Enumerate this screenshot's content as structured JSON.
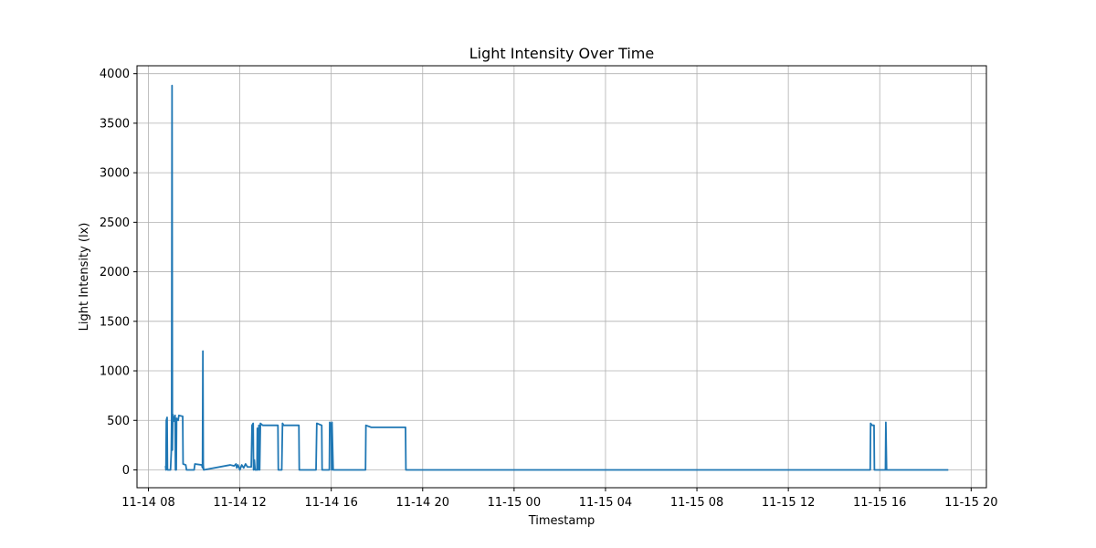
{
  "chart_data": {
    "type": "line",
    "title": "Light Intensity Over Time",
    "xlabel": "Timestamp",
    "ylabel": "Light Intensity (lx)",
    "x_ticks": [
      "11-14 08",
      "11-14 12",
      "11-14 16",
      "11-14 20",
      "11-15 00",
      "11-15 04",
      "11-15 08",
      "11-15 12",
      "11-15 16",
      "11-15 20"
    ],
    "y_ticks": [
      "0",
      "500",
      "1000",
      "1500",
      "2000",
      "2500",
      "3000",
      "3500",
      "4000"
    ],
    "xlim": [
      "2024-11-14T07:30",
      "2024-11-15T20:40"
    ],
    "ylim": [
      -180,
      4080
    ],
    "grid": true,
    "line_color": "#1f77b4",
    "series": [
      {
        "points": [
          [
            "2024-11-14T08:45",
            40
          ],
          [
            "2024-11-14T08:46",
            0
          ],
          [
            "2024-11-14T08:47",
            500
          ],
          [
            "2024-11-14T08:49",
            530
          ],
          [
            "2024-11-14T08:50",
            0
          ],
          [
            "2024-11-14T08:58",
            0
          ],
          [
            "2024-11-14T09:00",
            180
          ],
          [
            "2024-11-14T09:01",
            520
          ],
          [
            "2024-11-14T09:02",
            3880
          ],
          [
            "2024-11-14T09:03",
            200
          ],
          [
            "2024-11-14T09:04",
            560
          ],
          [
            "2024-11-14T09:06",
            520
          ],
          [
            "2024-11-14T09:08",
            490
          ],
          [
            "2024-11-14T09:10",
            550
          ],
          [
            "2024-11-14T09:11",
            0
          ],
          [
            "2024-11-14T09:13",
            0
          ],
          [
            "2024-11-14T09:14",
            520
          ],
          [
            "2024-11-14T09:18",
            500
          ],
          [
            "2024-11-14T09:20",
            550
          ],
          [
            "2024-11-14T09:30",
            540
          ],
          [
            "2024-11-14T09:31",
            60
          ],
          [
            "2024-11-14T09:38",
            50
          ],
          [
            "2024-11-14T09:40",
            0
          ],
          [
            "2024-11-14T10:00",
            0
          ],
          [
            "2024-11-14T10:02",
            60
          ],
          [
            "2024-11-14T10:20",
            50
          ],
          [
            "2024-11-14T10:22",
            20
          ],
          [
            "2024-11-14T10:23",
            1200
          ],
          [
            "2024-11-14T10:24",
            50
          ],
          [
            "2024-11-14T10:25",
            0
          ],
          [
            "2024-11-14T11:35",
            50
          ],
          [
            "2024-11-14T11:45",
            40
          ],
          [
            "2024-11-14T11:50",
            60
          ],
          [
            "2024-11-14T11:52",
            20
          ],
          [
            "2024-11-14T11:55",
            50
          ],
          [
            "2024-11-14T12:00",
            0
          ],
          [
            "2024-11-14T12:05",
            50
          ],
          [
            "2024-11-14T12:10",
            20
          ],
          [
            "2024-11-14T12:15",
            60
          ],
          [
            "2024-11-14T12:20",
            30
          ],
          [
            "2024-11-14T12:30",
            30
          ],
          [
            "2024-11-14T12:32",
            450
          ],
          [
            "2024-11-14T12:35",
            470
          ],
          [
            "2024-11-14T12:36",
            0
          ],
          [
            "2024-11-14T12:38",
            100
          ],
          [
            "2024-11-14T12:40",
            0
          ],
          [
            "2024-11-14T12:45",
            0
          ],
          [
            "2024-11-14T12:46",
            420
          ],
          [
            "2024-11-14T12:48",
            0
          ],
          [
            "2024-11-14T12:50",
            450
          ],
          [
            "2024-11-14T12:52",
            0
          ],
          [
            "2024-11-14T12:54",
            470
          ],
          [
            "2024-11-14T13:00",
            450
          ],
          [
            "2024-11-14T13:40",
            450
          ],
          [
            "2024-11-14T13:41",
            0
          ],
          [
            "2024-11-14T13:50",
            0
          ],
          [
            "2024-11-14T13:52",
            470
          ],
          [
            "2024-11-14T13:55",
            450
          ],
          [
            "2024-11-14T14:35",
            450
          ],
          [
            "2024-11-14T14:36",
            0
          ],
          [
            "2024-11-14T15:20",
            0
          ],
          [
            "2024-11-14T15:22",
            470
          ],
          [
            "2024-11-14T15:35",
            450
          ],
          [
            "2024-11-14T15:36",
            0
          ],
          [
            "2024-11-14T15:55",
            0
          ],
          [
            "2024-11-14T15:56",
            480
          ],
          [
            "2024-11-14T16:00",
            460
          ],
          [
            "2024-11-14T16:01",
            0
          ],
          [
            "2024-11-14T16:02",
            480
          ],
          [
            "2024-11-14T16:05",
            0
          ],
          [
            "2024-11-14T17:30",
            0
          ],
          [
            "2024-11-14T17:31",
            450
          ],
          [
            "2024-11-14T17:45",
            430
          ],
          [
            "2024-11-14T19:15",
            430
          ],
          [
            "2024-11-14T19:16",
            0
          ],
          [
            "2024-11-15T15:35",
            0
          ],
          [
            "2024-11-15T15:36",
            470
          ],
          [
            "2024-11-15T15:40",
            450
          ],
          [
            "2024-11-15T15:45",
            450
          ],
          [
            "2024-11-15T15:46",
            0
          ],
          [
            "2024-11-15T16:15",
            0
          ],
          [
            "2024-11-15T16:16",
            480
          ],
          [
            "2024-11-15T16:18",
            0
          ],
          [
            "2024-11-15T19:00",
            0
          ]
        ]
      }
    ]
  }
}
